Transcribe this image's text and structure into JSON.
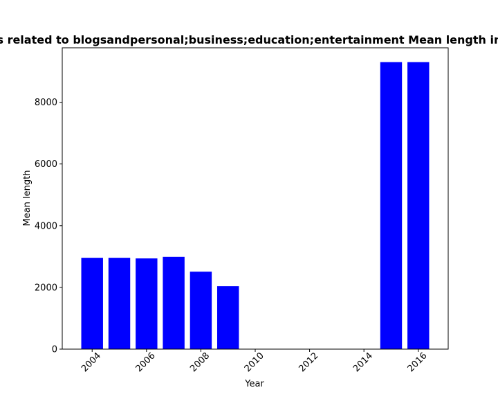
{
  "chart_data": {
    "type": "bar",
    "title": "Posts related to blogsandpersonal;business;education;entertainment Mean length in years",
    "xlabel": "Year",
    "ylabel": "Mean length",
    "x": [
      2004,
      2005,
      2006,
      2007,
      2008,
      2009,
      2015,
      2016
    ],
    "values": [
      2960,
      2960,
      2940,
      2990,
      2510,
      2040,
      9300,
      9300
    ],
    "xlim": [
      2002.9,
      2017.1
    ],
    "ylim": [
      0,
      9765
    ],
    "xticks": [
      "2004",
      "2006",
      "2008",
      "2010",
      "2012",
      "2014",
      "2016"
    ],
    "yticks": [
      "0",
      "2000",
      "4000",
      "6000",
      "8000"
    ],
    "bar_color": "#0000ff",
    "grid": false,
    "legend": false
  }
}
